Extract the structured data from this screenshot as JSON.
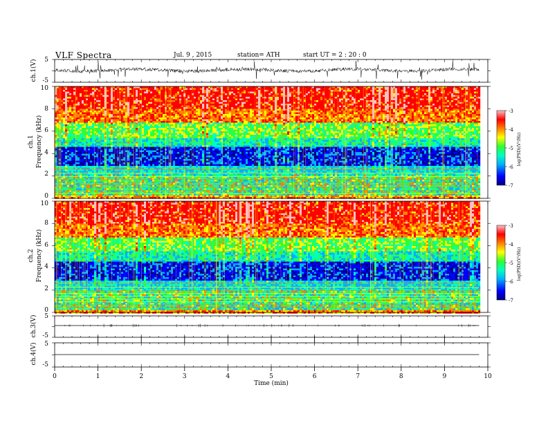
{
  "header": {
    "title": "VLF  Spectra",
    "date": "Jul.  9  ,  2015",
    "station": "station= ATH",
    "start": "start  UT  =   2  : 20 : 0"
  },
  "chart_data": [
    {
      "type": "line",
      "id": "ch1",
      "ylabel": "ch.1(V)",
      "yticks": [
        "5",
        "-5"
      ],
      "ylim": [
        -5,
        5
      ],
      "description_level": 0.2
    },
    {
      "type": "heatmap",
      "id": "ch1-spectrogram",
      "ylabel_channel": "ch.1",
      "ylabel": "Frequency  (kHz)",
      "yticks": [
        "0",
        "2",
        "4",
        "6",
        "8",
        "10"
      ],
      "ylim": [
        0,
        10
      ],
      "colorbar": {
        "label": "log(PSD)(V²/Hz)",
        "ticks": [
          "-3",
          "-4",
          "-5",
          "-6",
          "-7"
        ],
        "range": [
          -7,
          -3
        ]
      }
    },
    {
      "type": "heatmap",
      "id": "ch2-spectrogram",
      "ylabel_channel": "ch.2",
      "ylabel": "Frequency  (kHz)",
      "yticks": [
        "0",
        "2",
        "4",
        "6",
        "8",
        "10"
      ],
      "ylim": [
        0,
        10
      ],
      "colorbar": {
        "label": "log(PSD)(V²/Hz)",
        "ticks": [
          "-3",
          "-4",
          "-5",
          "-6",
          "-7"
        ],
        "range": [
          -7,
          -3
        ]
      }
    },
    {
      "type": "line",
      "id": "ch3",
      "ylabel": "ch.3(V)",
      "yticks": [
        "5",
        "-5"
      ],
      "ylim": [
        -5,
        5
      ]
    },
    {
      "type": "line",
      "id": "ch4",
      "ylabel": "ch.4(V)",
      "yticks": [
        "5",
        "-5"
      ],
      "ylim": [
        -5,
        5
      ]
    }
  ],
  "xaxis": {
    "label": "Time  (min)",
    "ticks": [
      "0",
      "1",
      "2",
      "3",
      "4",
      "5",
      "6",
      "7",
      "8",
      "9",
      "10"
    ],
    "xlim": [
      0,
      10
    ],
    "data_end": 9.8
  },
  "colors": {
    "scale": [
      "#000080",
      "#0000ff",
      "#00b0ff",
      "#00ffc0",
      "#30ff30",
      "#ffff00",
      "#ff8000",
      "#ff0000",
      "#ffc0c0"
    ]
  }
}
